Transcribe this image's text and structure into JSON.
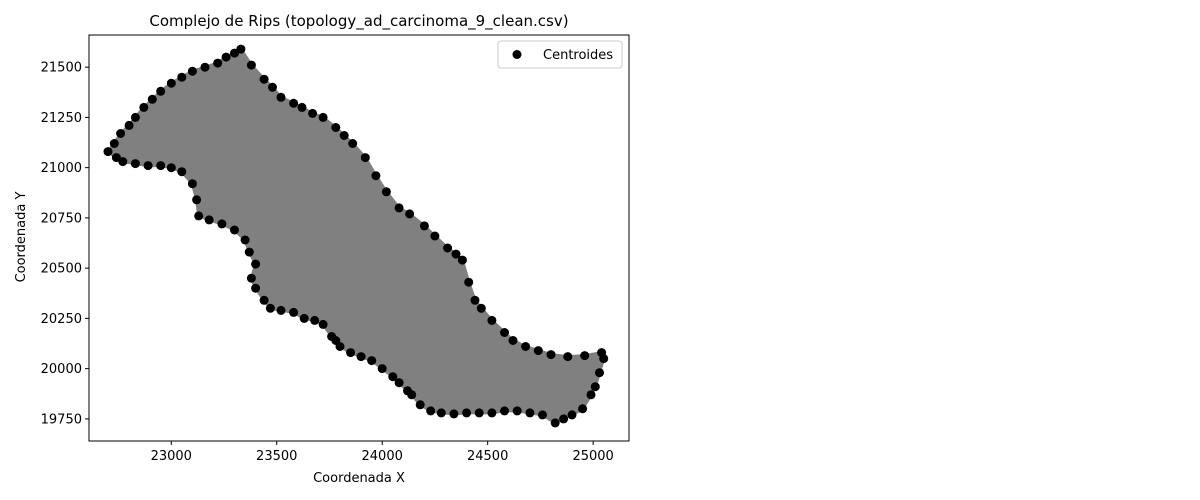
{
  "chart_data": {
    "type": "scatter",
    "title": "Complejo de Rips (topology_ad_carcinoma_9_clean.csv)",
    "xlabel": "Coordenada X",
    "ylabel": "Coordenada Y",
    "xlim": [
      22610,
      25170
    ],
    "ylim": [
      19640,
      21660
    ],
    "xticks": [
      23000,
      23500,
      24000,
      24500,
      25000
    ],
    "yticks": [
      19750,
      20000,
      20250,
      20500,
      20750,
      21000,
      21250,
      21500
    ],
    "grid": false,
    "legend": {
      "position": "top-right",
      "entries": [
        "Centroides"
      ]
    },
    "colors": {
      "points": "#000000",
      "complex_fill": "#808080"
    },
    "series": [
      {
        "name": "Centroides",
        "points": [
          [
            22700,
            21080
          ],
          [
            22730,
            21120
          ],
          [
            22760,
            21170
          ],
          [
            22800,
            21210
          ],
          [
            22830,
            21250
          ],
          [
            22870,
            21300
          ],
          [
            22910,
            21340
          ],
          [
            22950,
            21380
          ],
          [
            23000,
            21420
          ],
          [
            23050,
            21450
          ],
          [
            23100,
            21480
          ],
          [
            23160,
            21500
          ],
          [
            23220,
            21520
          ],
          [
            23260,
            21550
          ],
          [
            23300,
            21570
          ],
          [
            23330,
            21590
          ],
          [
            23380,
            21510
          ],
          [
            23440,
            21440
          ],
          [
            23480,
            21400
          ],
          [
            23520,
            21350
          ],
          [
            23580,
            21320
          ],
          [
            23620,
            21300
          ],
          [
            23670,
            21270
          ],
          [
            23720,
            21250
          ],
          [
            23780,
            21200
          ],
          [
            23820,
            21160
          ],
          [
            23860,
            21120
          ],
          [
            23920,
            21050
          ],
          [
            23970,
            20960
          ],
          [
            24020,
            20880
          ],
          [
            24080,
            20800
          ],
          [
            24130,
            20770
          ],
          [
            24200,
            20710
          ],
          [
            24250,
            20660
          ],
          [
            24310,
            20600
          ],
          [
            24350,
            20570
          ],
          [
            24380,
            20540
          ],
          [
            24410,
            20430
          ],
          [
            24440,
            20340
          ],
          [
            24470,
            20300
          ],
          [
            24520,
            20240
          ],
          [
            24580,
            20180
          ],
          [
            24620,
            20140
          ],
          [
            24680,
            20110
          ],
          [
            24740,
            20090
          ],
          [
            24800,
            20070
          ],
          [
            24880,
            20060
          ],
          [
            24960,
            20065
          ],
          [
            25040,
            20080
          ],
          [
            25050,
            20050
          ],
          [
            25030,
            19980
          ],
          [
            25010,
            19910
          ],
          [
            24990,
            19870
          ],
          [
            24950,
            19800
          ],
          [
            24900,
            19770
          ],
          [
            24860,
            19750
          ],
          [
            24820,
            19730
          ],
          [
            24760,
            19770
          ],
          [
            24700,
            19780
          ],
          [
            24640,
            19790
          ],
          [
            24580,
            19790
          ],
          [
            24520,
            19780
          ],
          [
            24460,
            19780
          ],
          [
            24400,
            19780
          ],
          [
            24340,
            19775
          ],
          [
            24280,
            19780
          ],
          [
            24230,
            19790
          ],
          [
            24180,
            19820
          ],
          [
            24140,
            19870
          ],
          [
            24120,
            19890
          ],
          [
            24080,
            19930
          ],
          [
            24050,
            19960
          ],
          [
            24000,
            20000
          ],
          [
            23950,
            20040
          ],
          [
            23900,
            20060
          ],
          [
            23850,
            20080
          ],
          [
            23800,
            20110
          ],
          [
            23780,
            20140
          ],
          [
            23760,
            20160
          ],
          [
            23720,
            20220
          ],
          [
            23680,
            20240
          ],
          [
            23630,
            20250
          ],
          [
            23580,
            20280
          ],
          [
            23520,
            20290
          ],
          [
            23470,
            20300
          ],
          [
            23440,
            20340
          ],
          [
            23400,
            20400
          ],
          [
            23380,
            20450
          ],
          [
            23400,
            20520
          ],
          [
            23370,
            20580
          ],
          [
            23350,
            20640
          ],
          [
            23300,
            20690
          ],
          [
            23240,
            20720
          ],
          [
            23180,
            20740
          ],
          [
            23130,
            20760
          ],
          [
            23120,
            20840
          ],
          [
            23100,
            20920
          ],
          [
            23050,
            20980
          ],
          [
            23000,
            21000
          ],
          [
            22950,
            21010
          ],
          [
            22890,
            21010
          ],
          [
            22830,
            21020
          ],
          [
            22770,
            21030
          ],
          [
            22740,
            21050
          ]
        ]
      }
    ]
  }
}
